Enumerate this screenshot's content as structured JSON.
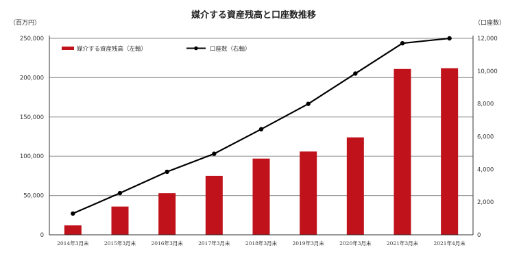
{
  "chart_data": {
    "type": "bar+line",
    "title": "媒介する資産残高と口座数推移",
    "left_unit": "（百万円）",
    "right_unit": "（口座数）",
    "categories": [
      "2014年3月末",
      "2015年3月末",
      "2016年3月末",
      "2017年3月末",
      "2018年3月末",
      "2019年3月末",
      "2020年3月末",
      "2021年3月末",
      "2021年4月末"
    ],
    "series": [
      {
        "name": "媒介する資産残高（左軸）",
        "type": "bar",
        "axis": "left",
        "color": "#c0121b",
        "values": [
          12000,
          36000,
          53000,
          75000,
          97000,
          106000,
          124000,
          211000,
          212000
        ]
      },
      {
        "name": "口座数（右軸）",
        "type": "line",
        "axis": "right",
        "color": "#000000",
        "values": [
          1300,
          2550,
          3850,
          4950,
          6450,
          8000,
          9850,
          11700,
          12000
        ]
      }
    ],
    "left_ticks": [
      "0",
      "50,000",
      "100,000",
      "150,000",
      "200,000",
      "250,000"
    ],
    "right_ticks": [
      "0",
      "2,000",
      "4,000",
      "6,000",
      "8,000",
      "10,000",
      "12,000"
    ],
    "left_range": [
      0,
      250000
    ],
    "right_range": [
      0,
      12000
    ],
    "grid": true,
    "legend_position": "top-left"
  }
}
